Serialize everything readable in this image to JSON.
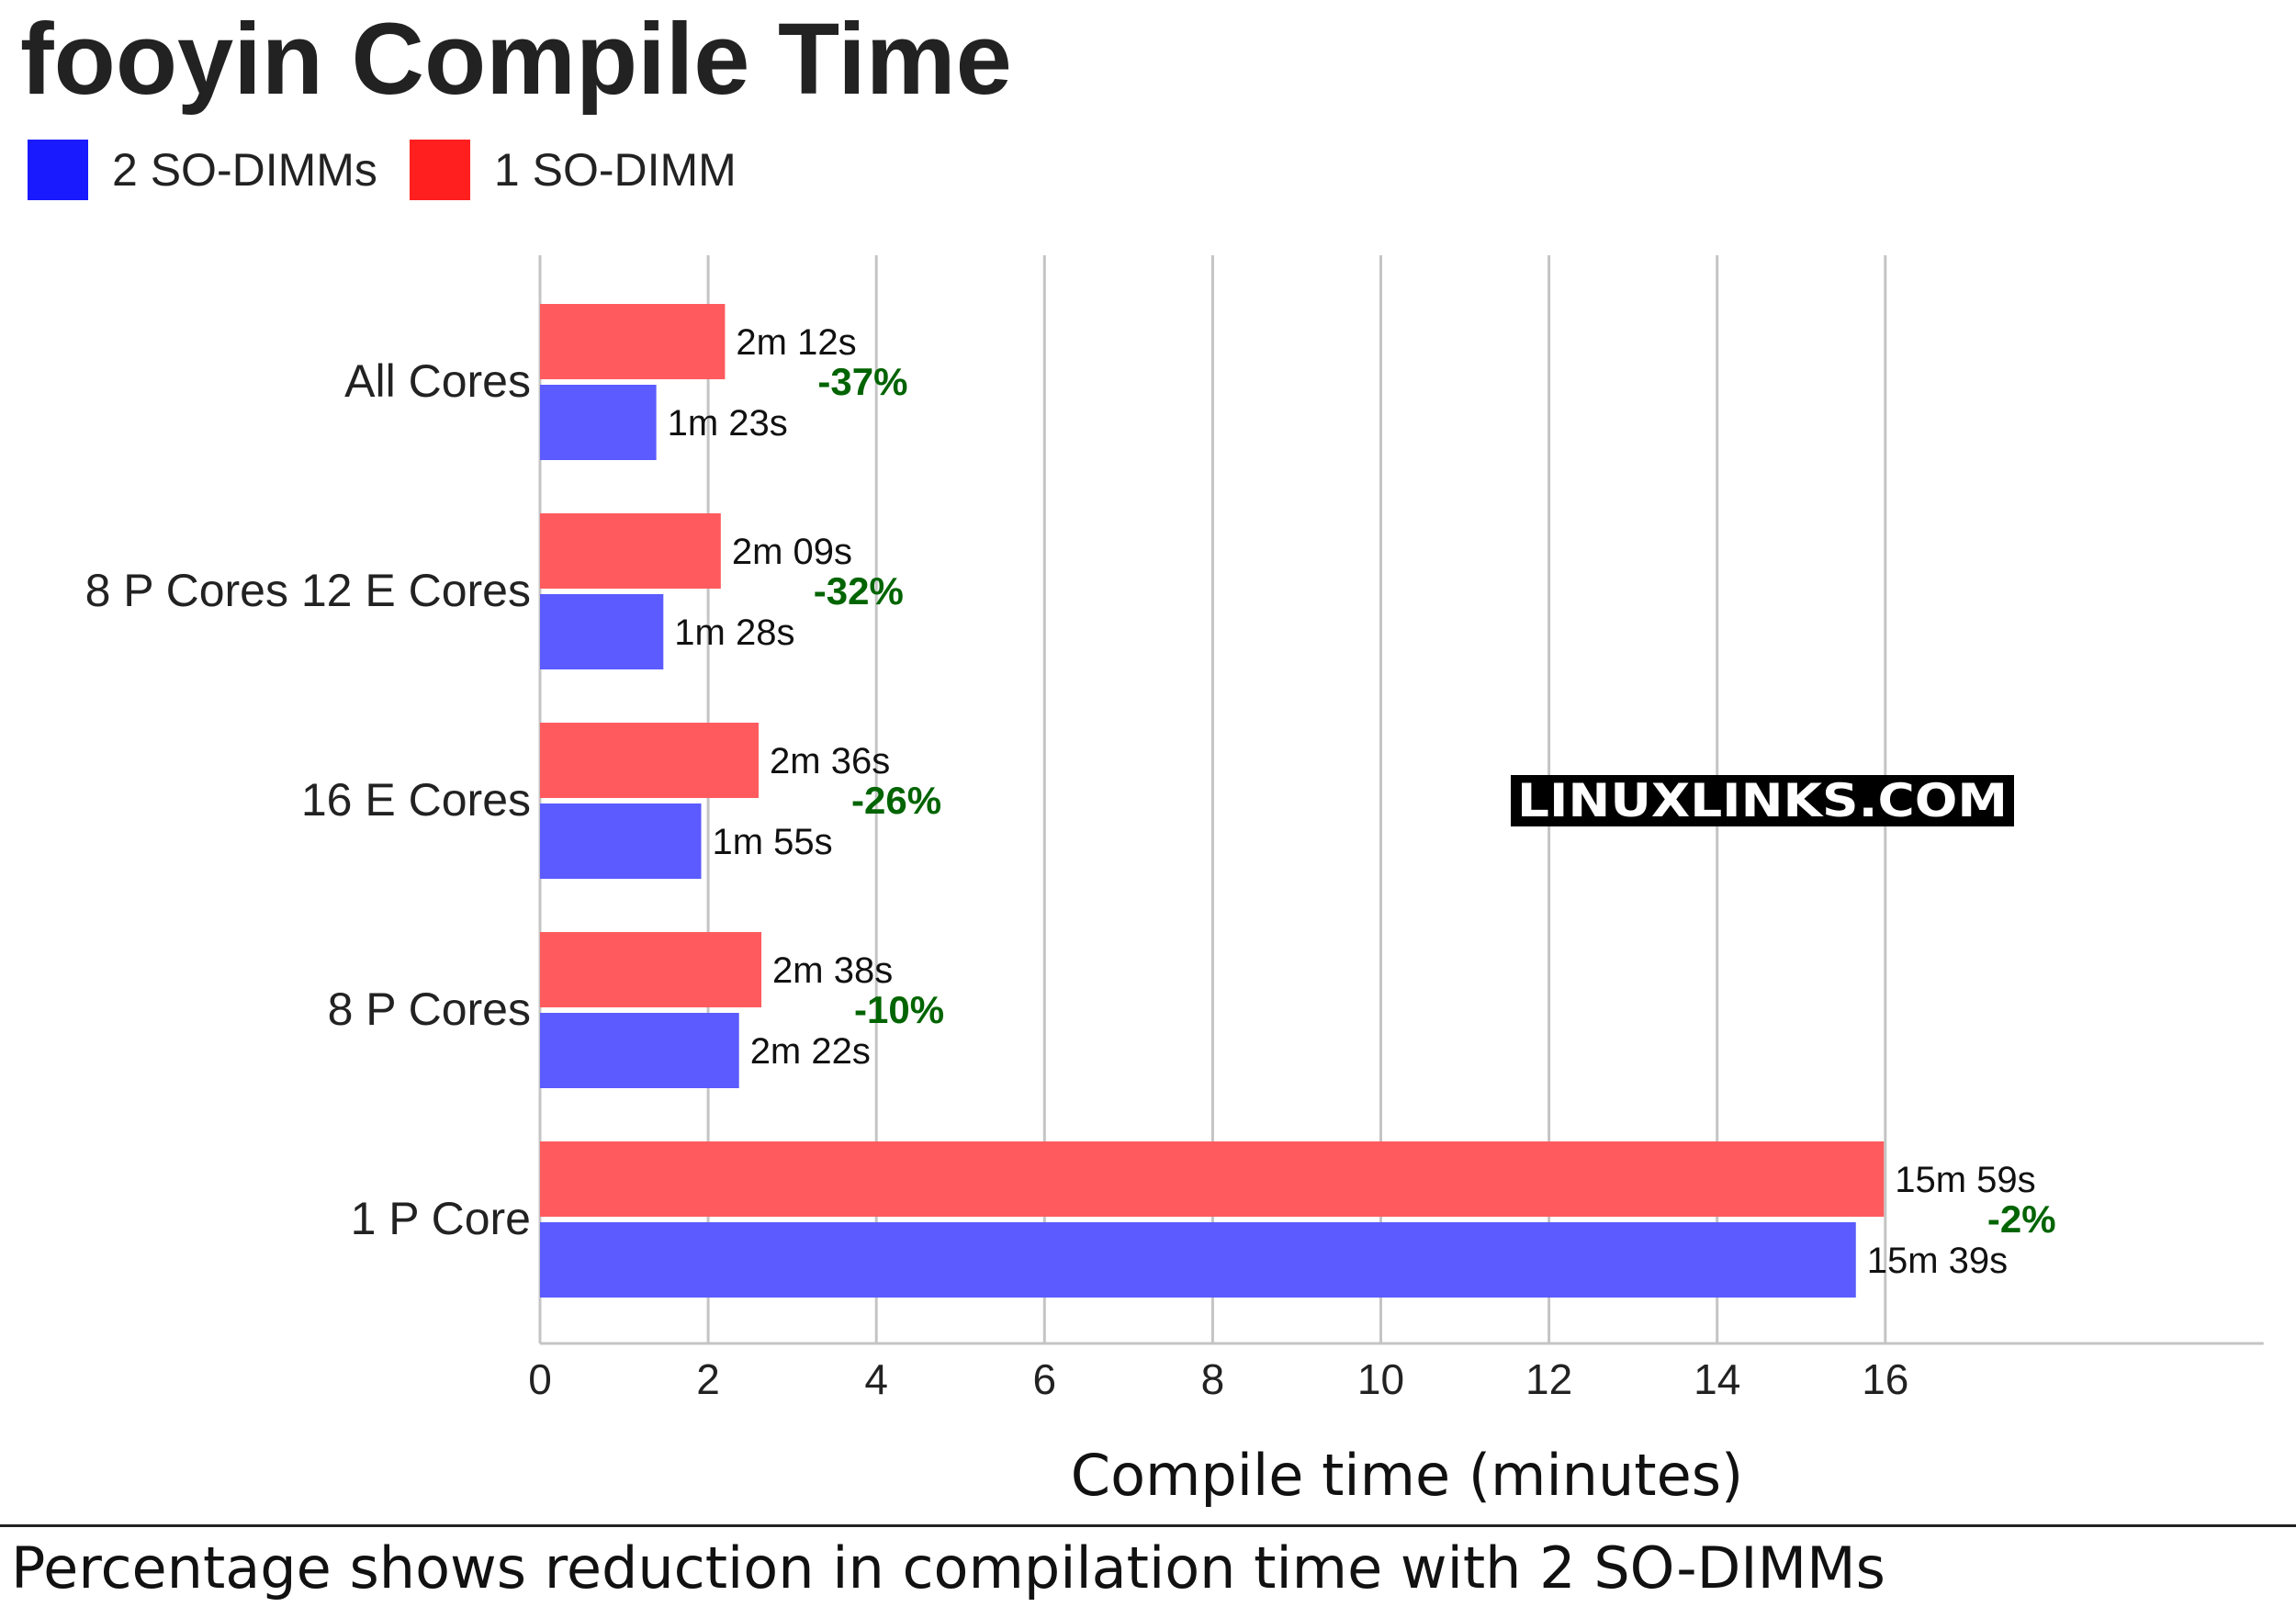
{
  "colors": {
    "two_sodimm": "#1a1aff",
    "one_sodimm": "#ff1f1f",
    "two_sodimm_bar": "#5b5bff",
    "one_sodimm_bar": "#ff5b5e",
    "percent": "#006400",
    "grid": "#c4c4c4",
    "text": "#222222"
  },
  "watermark": "LINUXLINKS.COM",
  "footnote": "Percentage shows reduction in compilation time with 2 SO-DIMMs",
  "chart_data": {
    "type": "bar",
    "orientation": "horizontal",
    "title": "fooyin Compile Time",
    "xlabel": "Compile time (minutes)",
    "ylabel": "",
    "xlim": [
      0,
      20.5
    ],
    "xticks": [
      0,
      2,
      4,
      6,
      8,
      10,
      12,
      14,
      16
    ],
    "grid": true,
    "legend_position": "top-left",
    "categories": [
      "All Cores",
      "8 P Cores 12 E Cores",
      "16 E Cores",
      "8 P Cores",
      "1 P Core"
    ],
    "series": [
      {
        "name": "2 SO-DIMMs",
        "color": "#1a1aff",
        "values": [
          1.383,
          1.467,
          1.917,
          2.367,
          15.65
        ],
        "labels": [
          "1m 23s",
          "1m 28s",
          "1m 55s",
          "2m 22s",
          "15m 39s"
        ]
      },
      {
        "name": "1 SO-DIMM",
        "color": "#ff1f1f",
        "values": [
          2.2,
          2.15,
          2.6,
          2.633,
          15.983
        ],
        "labels": [
          "2m 12s",
          "2m 09s",
          "2m 36s",
          "2m 38s",
          "15m 59s"
        ]
      }
    ],
    "annotations": [
      "-37%",
      "-32%",
      "-26%",
      "-10%",
      "-2%"
    ]
  }
}
